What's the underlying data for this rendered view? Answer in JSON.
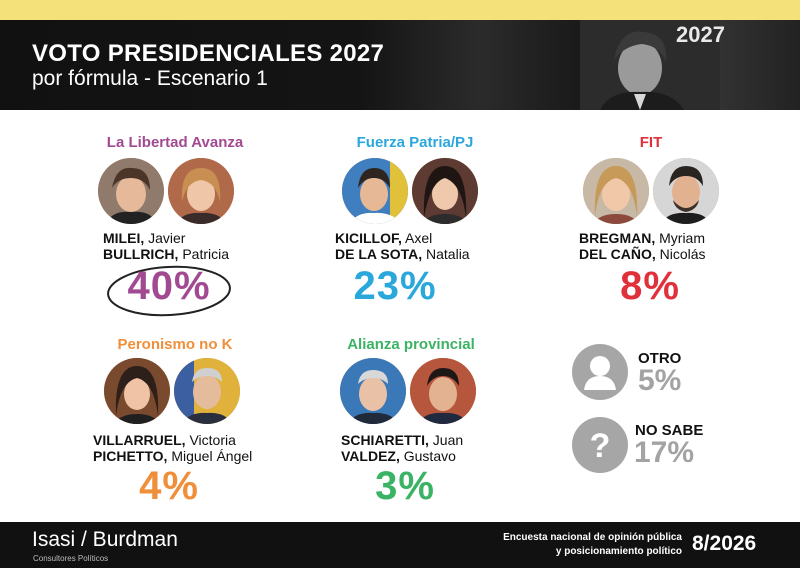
{
  "header": {
    "title": "VOTO PRESIDENCIALES 2027",
    "subtitle": "por fórmula - Escenario 1",
    "photo_year": "2027"
  },
  "chart_data": {
    "type": "table",
    "title": "VOTO PRESIDENCIALES 2027",
    "subtitle": "por fórmula - Escenario 1",
    "unit": "%",
    "formulas": [
      {
        "party": "La Libertad Avanza",
        "color": "#a24a91",
        "candidates": [
          {
            "surname": "MILEI,",
            "given": "Javier"
          },
          {
            "surname": "BULLRICH,",
            "given": "Patricia"
          }
        ],
        "value": 40,
        "label": "40%"
      },
      {
        "party": "Fuerza Patria/PJ",
        "color": "#2aa8dc",
        "candidates": [
          {
            "surname": "KICILLOF,",
            "given": "Axel"
          },
          {
            "surname": "DE LA SOTA,",
            "given": "Natalia"
          }
        ],
        "value": 23,
        "label": "23%"
      },
      {
        "party": "FIT",
        "color": "#e0303a",
        "candidates": [
          {
            "surname": "BREGMAN,",
            "given": "Myriam"
          },
          {
            "surname": "DEL CAÑO,",
            "given": "Nicolás"
          }
        ],
        "value": 8,
        "label": "8%"
      },
      {
        "party": "Peronismo no K",
        "color": "#ef8f3a",
        "candidates": [
          {
            "surname": "VILLARRUEL,",
            "given": "Victoria"
          },
          {
            "surname": "PICHETTO,",
            "given": "Miguel Ángel"
          }
        ],
        "value": 4,
        "label": "4%"
      },
      {
        "party": "Alianza provincial",
        "color": "#3bb364",
        "candidates": [
          {
            "surname": "SCHIARETTI,",
            "given": "Juan"
          },
          {
            "surname": "VALDEZ,",
            "given": "Gustavo"
          }
        ],
        "value": 3,
        "label": "3%"
      }
    ],
    "others": [
      {
        "label": "OTRO",
        "value": 5,
        "pct_label": "5%",
        "icon": "person-icon"
      },
      {
        "label": "NO SABE",
        "value": 17,
        "pct_label": "17%",
        "icon": "question-icon"
      }
    ]
  },
  "footer": {
    "brand": "Isasi / Burdman",
    "brand_sub": "Consultores Políticos",
    "survey_line1": "Encuesta nacional de opinión pública",
    "survey_line2": "y posicionamiento político",
    "date": "8/2026"
  },
  "colors": {
    "header_bg": "#111111",
    "top_stripe": "#f5e17a",
    "other_gray": "#a3a3a3"
  }
}
